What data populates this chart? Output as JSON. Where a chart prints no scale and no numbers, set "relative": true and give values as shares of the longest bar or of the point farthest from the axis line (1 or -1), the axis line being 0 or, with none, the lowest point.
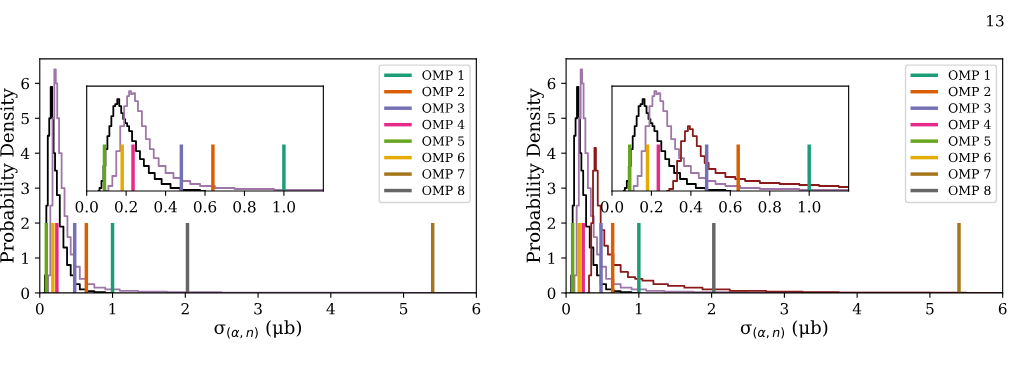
{
  "chart_data": [
    {
      "type": "step",
      "xlabel": "σ$_{(α,n)}$ (μb)",
      "ylabel": "Probability Density",
      "xlim": [
        0,
        6
      ],
      "ylim": [
        0,
        6.7
      ],
      "xticks": [
        0,
        1,
        2,
        3,
        4,
        5,
        6
      ],
      "yticks": [
        0,
        1,
        2,
        3,
        4,
        5,
        6
      ],
      "grid": false,
      "legend": "top right",
      "annotations": [
        "13"
      ],
      "series": [
        {
          "color": "#000000",
          "x": [
            0.06,
            0.08,
            0.1,
            0.12,
            0.14,
            0.16,
            0.18,
            0.2,
            0.22,
            0.25,
            0.3,
            0.35,
            0.4,
            0.45,
            0.5,
            0.6,
            0.7,
            0.8,
            1.0
          ],
          "values": [
            0,
            0.5,
            2.5,
            4.5,
            5.0,
            5.9,
            5.0,
            4.0,
            3.5,
            2.8,
            1.9,
            1.3,
            0.8,
            0.5,
            0.25,
            0.1,
            0.05,
            0.02,
            0
          ]
        },
        {
          "color": "#9e76a8",
          "x": [
            0.1,
            0.13,
            0.16,
            0.19,
            0.21,
            0.23,
            0.25,
            0.28,
            0.32,
            0.36,
            0.4,
            0.45,
            0.5,
            0.6,
            0.7,
            0.8,
            1.0,
            1.2,
            1.5,
            2.0,
            3.0,
            4.0,
            6.0
          ],
          "values": [
            0,
            0.5,
            2.5,
            5.0,
            6.4,
            6.0,
            5.0,
            4.0,
            3.0,
            2.2,
            1.6,
            1.1,
            0.75,
            0.4,
            0.25,
            0.15,
            0.1,
            0.06,
            0.04,
            0.02,
            0.01,
            0.01,
            0
          ]
        },
        {
          "type": "line",
          "name": "OMP 1",
          "color": "#1b9e77",
          "x": [
            1.0,
            1.0
          ],
          "values": [
            0,
            2
          ]
        },
        {
          "type": "line",
          "name": "OMP 2",
          "color": "#d95f02",
          "x": [
            0.64,
            0.64
          ],
          "values": [
            0,
            2
          ]
        },
        {
          "type": "line",
          "name": "OMP 3",
          "color": "#7570b3",
          "x": [
            0.48,
            0.48
          ],
          "values": [
            0,
            2
          ]
        },
        {
          "type": "line",
          "name": "OMP 4",
          "color": "#e7298a",
          "x": [
            0.235,
            0.235
          ],
          "values": [
            0,
            2
          ]
        },
        {
          "type": "line",
          "name": "OMP 5",
          "color": "#66a61e",
          "x": [
            0.09,
            0.09
          ],
          "values": [
            0,
            2
          ]
        },
        {
          "type": "line",
          "name": "OMP 6",
          "color": "#e6ab02",
          "x": [
            0.18,
            0.18
          ],
          "values": [
            0,
            2
          ]
        },
        {
          "type": "line",
          "name": "OMP 7",
          "color": "#a6761d",
          "x": [
            5.4,
            5.4
          ],
          "values": [
            0,
            2
          ]
        },
        {
          "type": "line",
          "name": "OMP 8",
          "color": "#666666",
          "x": [
            2.03,
            2.03
          ],
          "values": [
            0,
            2
          ]
        }
      ]
    },
    {
      "type": "step",
      "relative": true,
      "tick_labels": "x",
      "xlim": [
        0,
        1.2
      ],
      "xticks": [
        {
          "value": 0,
          "label": "0.0"
        },
        {
          "value": 0.2,
          "label": "0.2"
        },
        {
          "value": 0.4,
          "label": "0.4"
        },
        {
          "value": 0.6,
          "label": "0.6"
        },
        {
          "value": 0.8,
          "label": "0.8"
        },
        {
          "value": 1.0,
          "label": "1.0"
        }
      ],
      "grid": false,
      "series": [
        {
          "color": "#000000",
          "x": [
            0.06,
            0.07,
            0.08,
            0.09,
            0.1,
            0.11,
            0.12,
            0.13,
            0.14,
            0.15,
            0.16,
            0.17,
            0.18,
            0.19,
            0.2,
            0.21,
            0.22,
            0.24,
            0.26,
            0.28,
            0.3,
            0.33,
            0.36,
            0.4,
            0.45,
            0.5,
            0.55,
            0.6
          ],
          "values": [
            0,
            0.03,
            0.1,
            0.25,
            0.42,
            0.55,
            0.65,
            0.75,
            0.85,
            0.87,
            0.92,
            0.85,
            0.78,
            0.72,
            0.68,
            0.65,
            0.6,
            0.5,
            0.4,
            0.32,
            0.25,
            0.18,
            0.12,
            0.07,
            0.03,
            0.01,
            0.01,
            0
          ]
        },
        {
          "color": "#9e76a8",
          "x": [
            0.1,
            0.12,
            0.14,
            0.16,
            0.18,
            0.2,
            0.21,
            0.22,
            0.23,
            0.24,
            0.25,
            0.27,
            0.29,
            0.31,
            0.33,
            0.35,
            0.38,
            0.42,
            0.46,
            0.5,
            0.55,
            0.6,
            0.7,
            0.8,
            0.9,
            1.0,
            1.1,
            1.2
          ],
          "values": [
            0,
            0.05,
            0.15,
            0.4,
            0.65,
            0.85,
            0.95,
            1.0,
            0.97,
            0.98,
            0.9,
            0.8,
            0.65,
            0.52,
            0.42,
            0.33,
            0.25,
            0.18,
            0.13,
            0.1,
            0.07,
            0.05,
            0.03,
            0.02,
            0.02,
            0.01,
            0.01,
            0.01
          ]
        },
        {
          "type": "line",
          "color": "#1b9e77",
          "x": [
            1.0,
            1.0
          ],
          "values": [
            0,
            0.465
          ]
        },
        {
          "type": "line",
          "color": "#d95f02",
          "x": [
            0.64,
            0.64
          ],
          "values": [
            0,
            0.465
          ]
        },
        {
          "type": "line",
          "color": "#7570b3",
          "x": [
            0.48,
            0.48
          ],
          "values": [
            0,
            0.465
          ]
        },
        {
          "type": "line",
          "color": "#e7298a",
          "x": [
            0.235,
            0.235
          ],
          "values": [
            0,
            0.465
          ]
        },
        {
          "type": "line",
          "color": "#66a61e",
          "x": [
            0.09,
            0.09
          ],
          "values": [
            0,
            0.465
          ]
        },
        {
          "type": "line",
          "color": "#e6ab02",
          "x": [
            0.18,
            0.18
          ],
          "values": [
            0,
            0.465
          ]
        }
      ]
    },
    {
      "type": "step",
      "xlabel": "σ$_{(α,n)}$ (μb)",
      "ylabel": "Probability Density",
      "xlim": [
        0,
        6
      ],
      "ylim": [
        0,
        6.7
      ],
      "xticks": [
        0,
        1,
        2,
        3,
        4,
        5,
        6
      ],
      "yticks": [
        0,
        1,
        2,
        3,
        4,
        5,
        6
      ],
      "grid": false,
      "legend": "top right",
      "series": [
        {
          "color": "#000000",
          "x": [
            0.06,
            0.08,
            0.1,
            0.12,
            0.14,
            0.16,
            0.18,
            0.2,
            0.22,
            0.25,
            0.3,
            0.35,
            0.4,
            0.45,
            0.5,
            0.6,
            0.7,
            0.8,
            1.0
          ],
          "values": [
            0,
            0.5,
            2.5,
            4.5,
            5.0,
            5.9,
            5.0,
            4.0,
            3.5,
            2.8,
            1.9,
            1.3,
            0.8,
            0.5,
            0.25,
            0.1,
            0.05,
            0.02,
            0
          ]
        },
        {
          "color": "#9e76a8",
          "x": [
            0.1,
            0.13,
            0.16,
            0.19,
            0.21,
            0.23,
            0.25,
            0.28,
            0.32,
            0.36,
            0.4,
            0.45,
            0.5,
            0.6,
            0.7,
            0.8,
            1.0,
            1.2,
            1.5,
            2.0,
            3.0,
            4.0,
            6.0
          ],
          "values": [
            0,
            0.5,
            2.5,
            5.0,
            6.4,
            6.0,
            5.0,
            4.0,
            3.0,
            2.2,
            1.6,
            1.1,
            0.75,
            0.4,
            0.25,
            0.15,
            0.1,
            0.06,
            0.04,
            0.02,
            0.01,
            0.01,
            0
          ]
        },
        {
          "color": "#8b1a1a",
          "x": [
            0.3,
            0.33,
            0.36,
            0.38,
            0.4,
            0.42,
            0.45,
            0.5,
            0.55,
            0.6,
            0.7,
            0.8,
            0.9,
            1.0,
            1.1,
            1.3,
            1.5,
            1.75,
            2.0,
            2.5,
            3.0,
            3.5,
            4.0,
            5.0,
            6.0
          ],
          "values": [
            0,
            0.5,
            2.0,
            3.5,
            4.15,
            3.5,
            2.5,
            1.8,
            1.35,
            1.1,
            0.8,
            0.6,
            0.45,
            0.4,
            0.35,
            0.25,
            0.2,
            0.15,
            0.1,
            0.06,
            0.04,
            0.02,
            0.01,
            0.01,
            0
          ]
        },
        {
          "type": "line",
          "name": "OMP 1",
          "color": "#1b9e77",
          "x": [
            1.0,
            1.0
          ],
          "values": [
            0,
            2
          ]
        },
        {
          "type": "line",
          "name": "OMP 2",
          "color": "#d95f02",
          "x": [
            0.64,
            0.64
          ],
          "values": [
            0,
            2
          ]
        },
        {
          "type": "line",
          "name": "OMP 3",
          "color": "#7570b3",
          "x": [
            0.48,
            0.48
          ],
          "values": [
            0,
            2
          ]
        },
        {
          "type": "line",
          "name": "OMP 4",
          "color": "#e7298a",
          "x": [
            0.235,
            0.235
          ],
          "values": [
            0,
            2
          ]
        },
        {
          "type": "line",
          "name": "OMP 5",
          "color": "#66a61e",
          "x": [
            0.09,
            0.09
          ],
          "values": [
            0,
            2
          ]
        },
        {
          "type": "line",
          "name": "OMP 6",
          "color": "#e6ab02",
          "x": [
            0.18,
            0.18
          ],
          "values": [
            0,
            2
          ]
        },
        {
          "type": "line",
          "name": "OMP 7",
          "color": "#a6761d",
          "x": [
            5.4,
            5.4
          ],
          "values": [
            0,
            2
          ]
        },
        {
          "type": "line",
          "name": "OMP 8",
          "color": "#666666",
          "x": [
            2.03,
            2.03
          ],
          "values": [
            0,
            2
          ]
        }
      ]
    },
    {
      "type": "step",
      "relative": true,
      "tick_labels": "x",
      "xlim": [
        0,
        1.2
      ],
      "xticks": [
        {
          "value": 0,
          "label": "0.0"
        },
        {
          "value": 0.2,
          "label": "0.2"
        },
        {
          "value": 0.4,
          "label": "0.4"
        },
        {
          "value": 0.6,
          "label": "0.6"
        },
        {
          "value": 0.8,
          "label": "0.8"
        },
        {
          "value": 1.0,
          "label": "1.0"
        }
      ],
      "grid": false,
      "series": [
        {
          "color": "#000000",
          "x": [
            0.06,
            0.07,
            0.08,
            0.09,
            0.1,
            0.11,
            0.12,
            0.13,
            0.14,
            0.15,
            0.16,
            0.17,
            0.18,
            0.19,
            0.2,
            0.21,
            0.22,
            0.24,
            0.26,
            0.28,
            0.3,
            0.33,
            0.36,
            0.4,
            0.45,
            0.5,
            0.55,
            0.6
          ],
          "values": [
            0,
            0.03,
            0.1,
            0.25,
            0.42,
            0.55,
            0.65,
            0.75,
            0.85,
            0.87,
            0.92,
            0.85,
            0.78,
            0.72,
            0.68,
            0.65,
            0.6,
            0.5,
            0.4,
            0.32,
            0.25,
            0.18,
            0.12,
            0.07,
            0.03,
            0.01,
            0.01,
            0
          ]
        },
        {
          "color": "#9e76a8",
          "x": [
            0.1,
            0.12,
            0.14,
            0.16,
            0.18,
            0.2,
            0.21,
            0.22,
            0.23,
            0.24,
            0.25,
            0.27,
            0.29,
            0.31,
            0.33,
            0.35,
            0.38,
            0.42,
            0.46,
            0.5,
            0.55,
            0.6,
            0.7,
            0.8,
            0.9,
            1.0,
            1.1,
            1.2
          ],
          "values": [
            0,
            0.05,
            0.15,
            0.4,
            0.65,
            0.85,
            0.95,
            1.0,
            0.97,
            0.98,
            0.9,
            0.8,
            0.65,
            0.52,
            0.42,
            0.33,
            0.25,
            0.18,
            0.13,
            0.1,
            0.07,
            0.05,
            0.03,
            0.02,
            0.02,
            0.01,
            0.01,
            0.01
          ]
        },
        {
          "color": "#8b1a1a",
          "x": [
            0.28,
            0.3,
            0.32,
            0.34,
            0.36,
            0.38,
            0.39,
            0.4,
            0.42,
            0.44,
            0.46,
            0.48,
            0.5,
            0.55,
            0.6,
            0.65,
            0.7,
            0.8,
            0.9,
            1.0,
            1.1,
            1.2
          ],
          "values": [
            0,
            0.02,
            0.1,
            0.3,
            0.5,
            0.6,
            0.65,
            0.62,
            0.55,
            0.45,
            0.35,
            0.28,
            0.22,
            0.18,
            0.14,
            0.12,
            0.1,
            0.08,
            0.07,
            0.06,
            0.05,
            0.04
          ]
        },
        {
          "type": "line",
          "color": "#1b9e77",
          "x": [
            1.0,
            1.0
          ],
          "values": [
            0,
            0.465
          ]
        },
        {
          "type": "line",
          "color": "#d95f02",
          "x": [
            0.64,
            0.64
          ],
          "values": [
            0,
            0.465
          ]
        },
        {
          "type": "line",
          "color": "#7570b3",
          "x": [
            0.48,
            0.48
          ],
          "values": [
            0,
            0.465
          ]
        },
        {
          "type": "line",
          "color": "#e7298a",
          "x": [
            0.235,
            0.235
          ],
          "values": [
            0,
            0.465
          ]
        },
        {
          "type": "line",
          "color": "#66a61e",
          "x": [
            0.09,
            0.09
          ],
          "values": [
            0,
            0.465
          ]
        },
        {
          "type": "line",
          "color": "#e6ab02",
          "x": [
            0.18,
            0.18
          ],
          "values": [
            0,
            0.465
          ]
        }
      ]
    }
  ]
}
